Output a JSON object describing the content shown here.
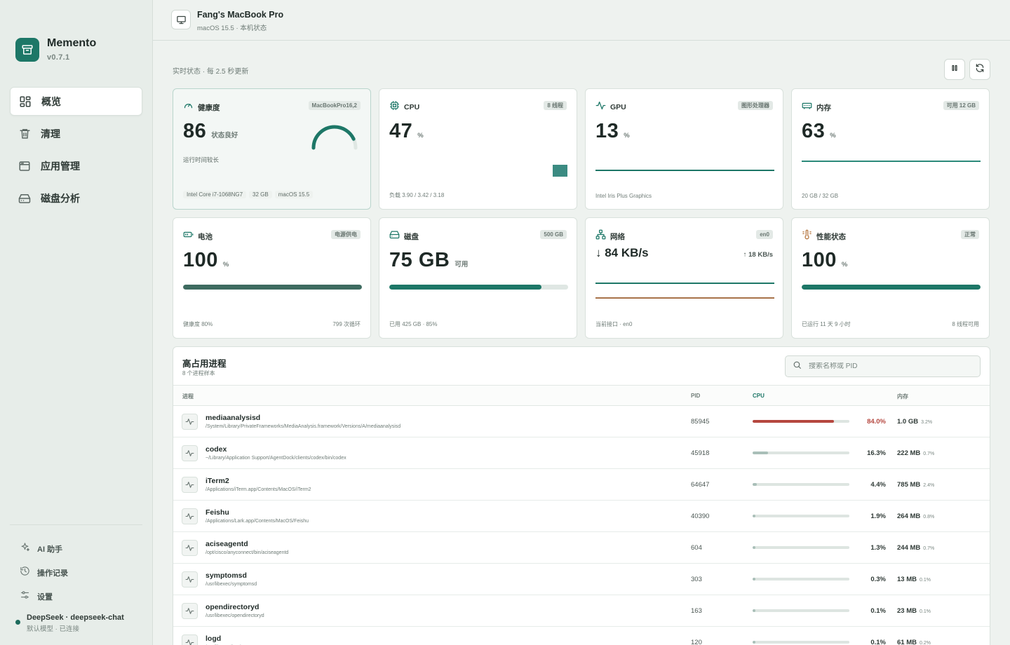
{
  "sidebar": {
    "brand_name": "Memento",
    "brand_version": "v0.7.1",
    "nav": [
      {
        "label": "概览",
        "icon": "grid-icon"
      },
      {
        "label": "清理",
        "icon": "trash-icon"
      },
      {
        "label": "应用管理",
        "icon": "window-icon"
      },
      {
        "label": "磁盘分析",
        "icon": "drive-icon"
      }
    ],
    "links": [
      {
        "label": "AI 助手",
        "icon": "sparkle-icon"
      },
      {
        "label": "操作记录",
        "icon": "history-icon"
      },
      {
        "label": "设置",
        "icon": "sliders-icon"
      }
    ],
    "model": {
      "name": "DeepSeek · deepseek-chat",
      "status": "默认模型 · 已连接"
    }
  },
  "header": {
    "device_name": "Fang's MacBook Pro",
    "device_os": "macOS 15.5 · 本机状态"
  },
  "status_text": "实时状态 · 每 2.5 秒更新",
  "cards": {
    "health": {
      "title": "健康度",
      "chip": "MacBookPro16,2",
      "value": "86",
      "unit": "状态良好",
      "note": "运行时间较长",
      "tags": [
        "Intel Core i7-1068NG7",
        "32 GB",
        "macOS 15.5"
      ],
      "gauge_fraction": 0.86
    },
    "cpu": {
      "title": "CPU",
      "chip": "8 线程",
      "value": "47",
      "unit": "%",
      "foot": "负载 3.90 / 3.42 / 3.18"
    },
    "gpu": {
      "title": "GPU",
      "chip": "图形处理器",
      "value": "13",
      "unit": "%",
      "foot": "Intel Iris Plus Graphics"
    },
    "memory": {
      "title": "内存",
      "chip": "可用 12 GB",
      "value": "63",
      "unit": "%",
      "foot": "20 GB / 32 GB"
    },
    "battery": {
      "title": "电池",
      "chip": "电源供电",
      "value": "100",
      "unit": "%",
      "foot_left": "健康度 80%",
      "foot_right": "799 次循环",
      "fill": 1.0
    },
    "disk": {
      "title": "磁盘",
      "chip": "500 GB",
      "value": "75 GB",
      "unit": "可用",
      "foot": "已用 425 GB · 85%",
      "fill": 0.85
    },
    "network": {
      "title": "网络",
      "chip": "en0",
      "down": "↓ 84 KB/s",
      "up": "↑ 18 KB/s",
      "foot": "当前接口 · en0"
    },
    "performance": {
      "title": "性能状态",
      "chip": "正常",
      "value": "100",
      "unit": "%",
      "foot_left": "已运行 11 天 9 小时",
      "foot_right": "8 线程可用",
      "fill": 1.0
    }
  },
  "processes": {
    "title": "高占用进程",
    "subtitle": "8 个进程样本",
    "search_placeholder": "搜索名称或 PID",
    "columns": {
      "process": "进程",
      "pid": "PID",
      "cpu": "CPU",
      "memory": "内存"
    },
    "rows": [
      {
        "name": "mediaanalysisd",
        "path": "/System/Library/PrivateFrameworks/MediaAnalysis.framework/Versions/A/mediaanalysisd",
        "pid": "85945",
        "cpu": "84.0%",
        "cpu_frac": 0.84,
        "mem": "1.0 GB",
        "mem_pct": "3.2%"
      },
      {
        "name": "codex",
        "path": "~/Library/Application Support/AgentDock/clients/codex/bin/codex",
        "pid": "45918",
        "cpu": "16.3%",
        "cpu_frac": 0.163,
        "mem": "222 MB",
        "mem_pct": "0.7%"
      },
      {
        "name": "iTerm2",
        "path": "/Applications/iTerm.app/Contents/MacOS/iTerm2",
        "pid": "64647",
        "cpu": "4.4%",
        "cpu_frac": 0.044,
        "mem": "785 MB",
        "mem_pct": "2.4%"
      },
      {
        "name": "Feishu",
        "path": "/Applications/Lark.app/Contents/MacOS/Feishu",
        "pid": "40390",
        "cpu": "1.9%",
        "cpu_frac": 0.019,
        "mem": "264 MB",
        "mem_pct": "0.8%"
      },
      {
        "name": "aciseagentd",
        "path": "/opt/cisco/anyconnect/bin/aciseagentd",
        "pid": "604",
        "cpu": "1.3%",
        "cpu_frac": 0.013,
        "mem": "244 MB",
        "mem_pct": "0.7%"
      },
      {
        "name": "symptomsd",
        "path": "/usr/libexec/symptomsd",
        "pid": "303",
        "cpu": "0.3%",
        "cpu_frac": 0.003,
        "mem": "13 MB",
        "mem_pct": "0.1%"
      },
      {
        "name": "opendirectoryd",
        "path": "/usr/libexec/opendirectoryd",
        "pid": "163",
        "cpu": "0.1%",
        "cpu_frac": 0.001,
        "mem": "23 MB",
        "mem_pct": "0.1%"
      },
      {
        "name": "logd",
        "path": "/usr/libexec/logd",
        "pid": "120",
        "cpu": "0.1%",
        "cpu_frac": 0.001,
        "mem": "61 MB",
        "mem_pct": "0.2%"
      }
    ]
  },
  "colors": {
    "accent": "#1d7767",
    "danger": "#b5473f",
    "muted_bar": "#a9bfb8",
    "battery_bar": "#3e6b60",
    "net_up": "#a8734a"
  }
}
